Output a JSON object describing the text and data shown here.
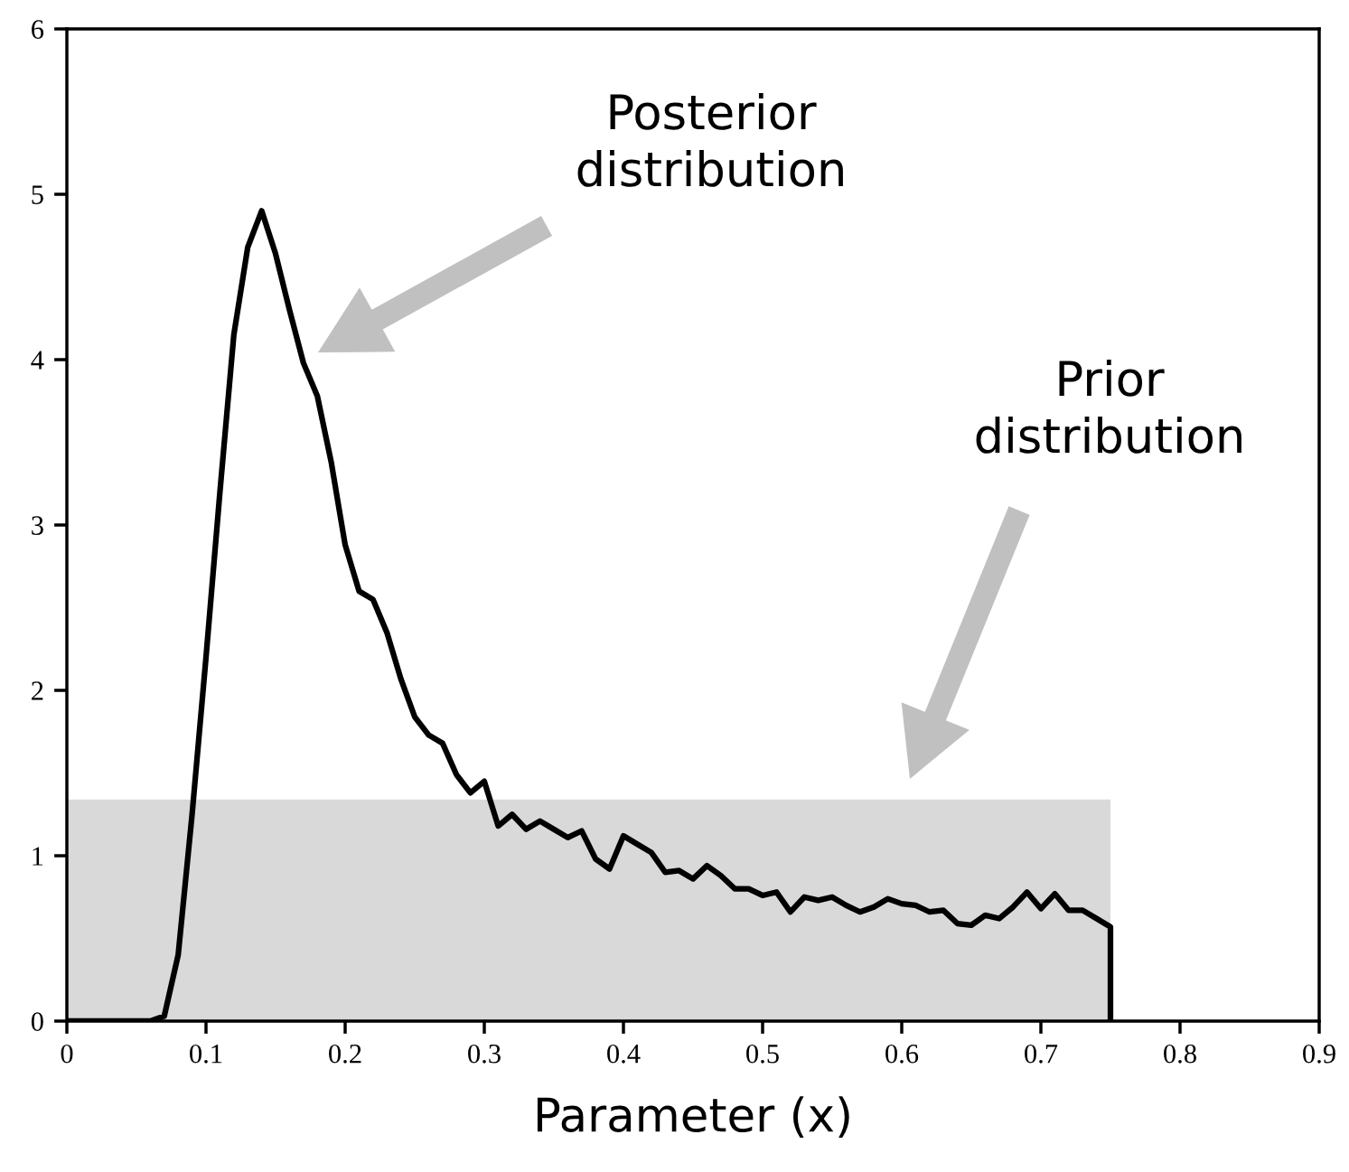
{
  "chart_data": {
    "type": "line",
    "xlabel": "Parameter (x)",
    "xlim": [
      0,
      0.9
    ],
    "xticks": [
      0,
      0.1,
      0.2,
      0.3,
      0.4,
      0.5,
      0.6,
      0.7,
      0.8,
      0.9
    ],
    "ylim": [
      0,
      6
    ],
    "yticks": [
      0,
      1,
      2,
      3,
      4,
      5,
      6
    ],
    "grid": false,
    "series": [
      {
        "type": "area",
        "color": "#d9d9d9",
        "x": [
          0,
          0.75
        ],
        "values": [
          1.34,
          1.34
        ]
      },
      {
        "color": "#000000",
        "line_style": "solid",
        "marker": "none",
        "x": [
          0,
          0.01,
          0.02,
          0.03,
          0.04,
          0.05,
          0.06,
          0.07,
          0.08,
          0.09,
          0.1,
          0.11,
          0.12,
          0.13,
          0.14,
          0.15,
          0.16,
          0.17,
          0.18,
          0.19,
          0.2,
          0.21,
          0.22,
          0.23,
          0.24,
          0.25,
          0.26,
          0.27,
          0.28,
          0.29,
          0.3,
          0.31,
          0.32,
          0.33,
          0.34,
          0.35,
          0.36,
          0.37,
          0.38,
          0.39,
          0.4,
          0.41,
          0.42,
          0.43,
          0.44,
          0.45,
          0.46,
          0.47,
          0.48,
          0.49,
          0.5,
          0.51,
          0.52,
          0.53,
          0.54,
          0.55,
          0.56,
          0.57,
          0.58,
          0.59,
          0.6,
          0.61,
          0.62,
          0.63,
          0.64,
          0.65,
          0.66,
          0.67,
          0.68,
          0.69,
          0.7,
          0.71,
          0.72,
          0.73,
          0.74,
          0.75,
          0.75
        ],
        "values": [
          0,
          0,
          0,
          0,
          0,
          0,
          0,
          0.03,
          0.4,
          1.25,
          2.2,
          3.2,
          4.15,
          4.68,
          4.9,
          4.64,
          4.3,
          3.98,
          3.78,
          3.38,
          2.88,
          2.6,
          2.55,
          2.35,
          2.07,
          1.84,
          1.73,
          1.68,
          1.49,
          1.38,
          1.45,
          1.18,
          1.25,
          1.16,
          1.21,
          1.16,
          1.11,
          1.15,
          0.98,
          0.92,
          1.12,
          1.07,
          1.02,
          0.9,
          0.91,
          0.86,
          0.94,
          0.88,
          0.8,
          0.8,
          0.76,
          0.78,
          0.66,
          0.75,
          0.73,
          0.75,
          0.7,
          0.66,
          0.69,
          0.74,
          0.71,
          0.7,
          0.66,
          0.67,
          0.59,
          0.58,
          0.64,
          0.62,
          0.69,
          0.78,
          0.68,
          0.77,
          0.67,
          0.67,
          0.62,
          0.57,
          0
        ]
      }
    ],
    "annotations": [
      "Posterior\ndistribution",
      "Prior\ndistribution"
    ]
  }
}
